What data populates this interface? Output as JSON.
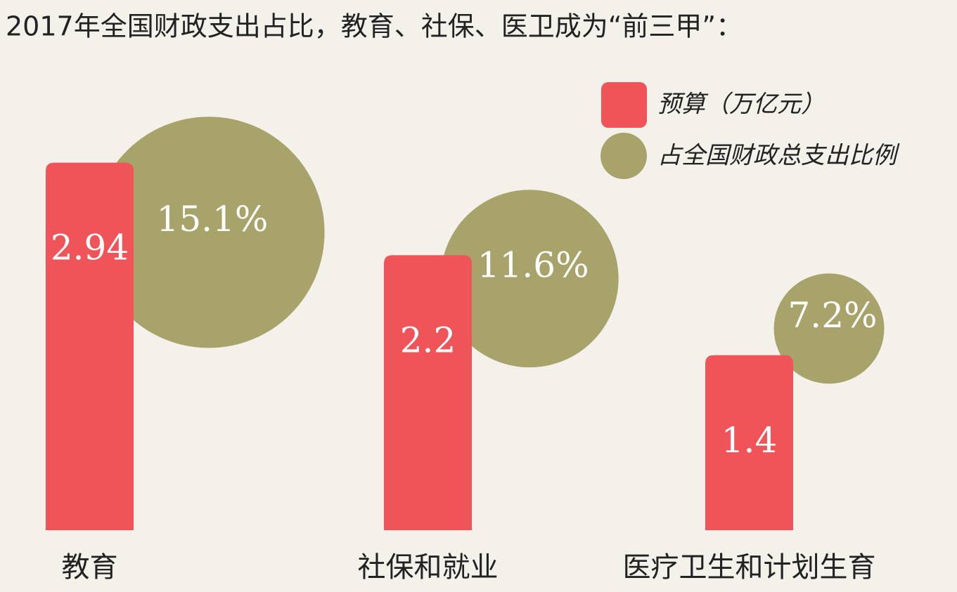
{
  "chart_data": {
    "type": "bar",
    "title": "2017年全国财政支出占比，教育、社保、医卫成为“前三甲”：",
    "categories": [
      "教育",
      "社保和就业",
      "医疗卫生和计划生育"
    ],
    "series": [
      {
        "name": "预算（万亿元）",
        "color": "#ef5459",
        "values": [
          2.94,
          2.2,
          1.4
        ]
      },
      {
        "name": "占全国财政总支出比例",
        "color": "#a8a36b",
        "marker": "circle",
        "values": [
          15.1,
          11.6,
          7.2
        ],
        "value_labels": [
          "15.1%",
          "11.6%",
          "7.2%"
        ]
      }
    ]
  }
}
